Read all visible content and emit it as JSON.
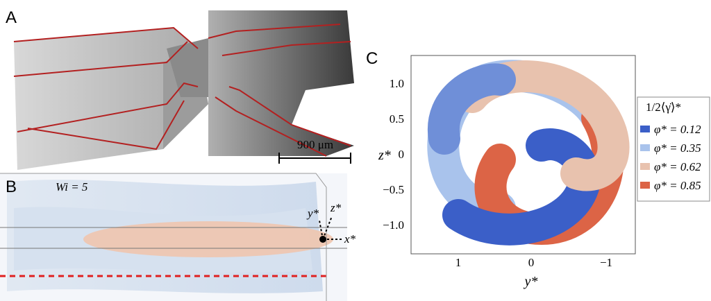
{
  "panels": {
    "a": {
      "label": "A",
      "scale_bar": "900 μm"
    },
    "b": {
      "label": "B",
      "parameter": "Wi = 5",
      "axes": [
        "y*",
        "z*",
        "x*"
      ]
    },
    "c": {
      "label": "C",
      "y_axis": {
        "label": "z*",
        "ticks": [
          "1.0",
          "0.5",
          "0",
          "−0.5",
          "−1.0"
        ]
      },
      "x_axis": {
        "label": "y*",
        "ticks": [
          "1",
          "0",
          "−1"
        ]
      },
      "legend": {
        "title": "1/2⟨γ̇⟩*",
        "entries": [
          {
            "label": "φ* = 0.12",
            "color": "#3b5fc8"
          },
          {
            "label": "φ* = 0.35",
            "color": "#a9c3ec"
          },
          {
            "label": "φ* = 0.62",
            "color": "#e8c2ae"
          },
          {
            "label": "φ* = 0.85",
            "color": "#dc6446"
          }
        ]
      }
    }
  }
}
